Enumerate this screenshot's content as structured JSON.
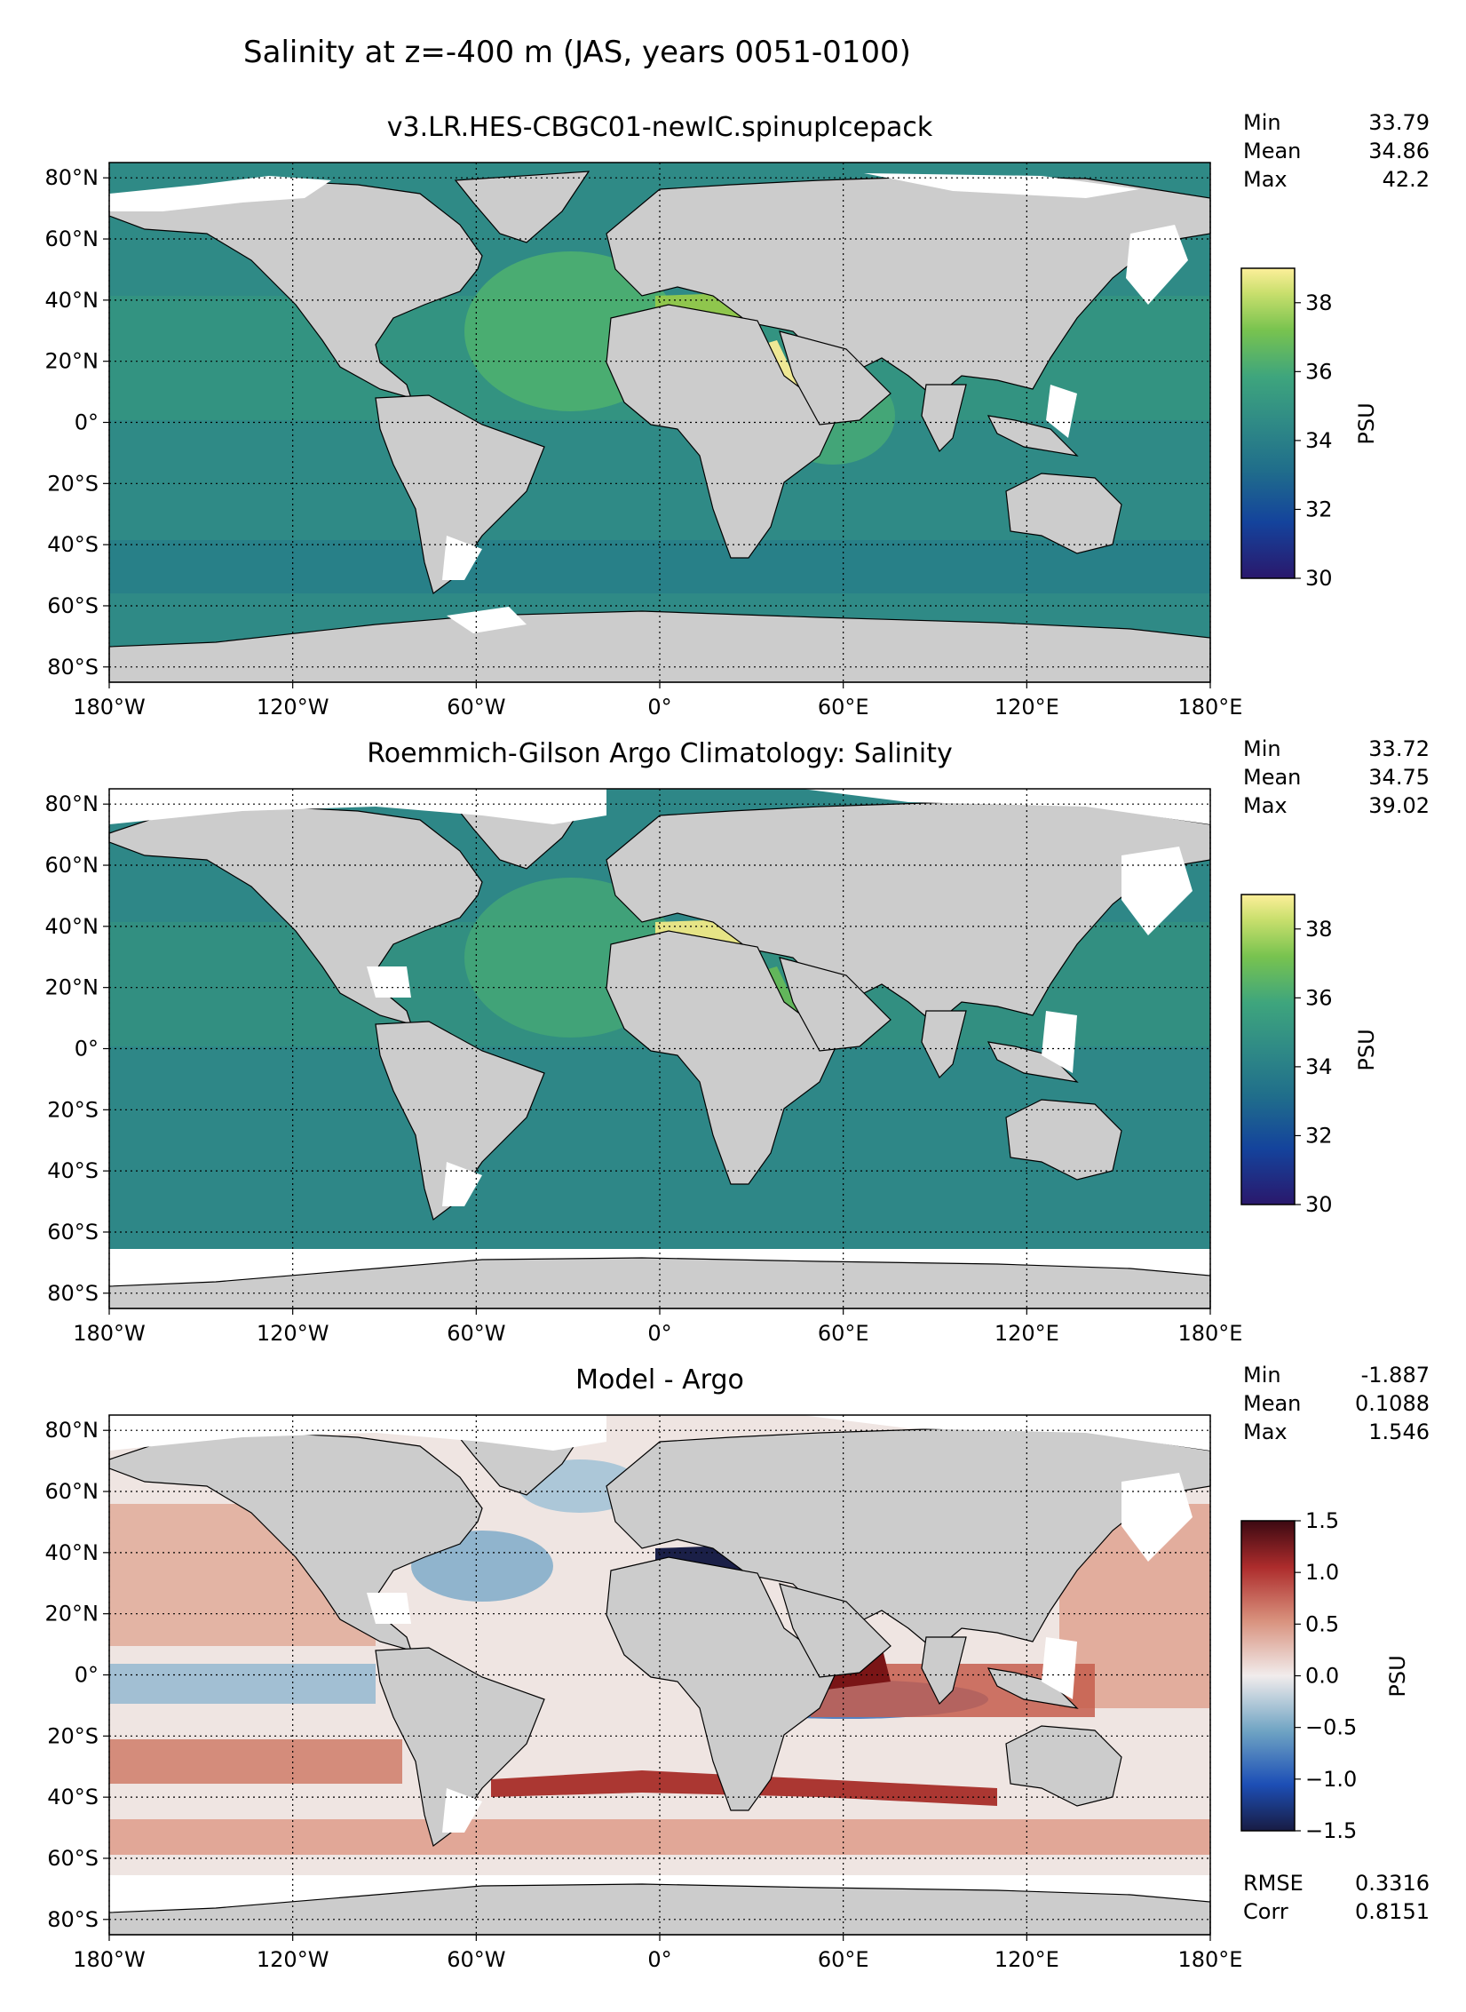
{
  "suptitle": "Salinity at z=-400 m (JAS, years 0051-0100)",
  "x_ticks": [
    "180°W",
    "120°W",
    "60°W",
    "0°",
    "60°E",
    "120°E",
    "180°E"
  ],
  "y_ticks": [
    "80°N",
    "60°N",
    "40°N",
    "20°N",
    "0°",
    "20°S",
    "40°S",
    "60°S",
    "80°S"
  ],
  "colors": {
    "land": "#cccccc",
    "missing": "#ffffff",
    "grid": "#000000"
  },
  "chart_data": [
    {
      "type": "heatmap",
      "title": "v3.LR.HES-CBGC01-newIC.spinupIcepack",
      "variable": "Salinity",
      "colormap": "haline",
      "colorbar": {
        "label": "PSU",
        "range": [
          30,
          39
        ],
        "ticks": [
          "30",
          "32",
          "34",
          "36",
          "38"
        ]
      },
      "stats": {
        "labels": [
          "Min",
          "Mean",
          "Max"
        ],
        "values": [
          "33.79",
          "34.86",
          "42.2"
        ]
      },
      "extras": null,
      "xlim": [
        -180,
        180
      ],
      "ylim": [
        -85,
        85
      ],
      "missing_south_of": null
    },
    {
      "type": "heatmap",
      "title": "Roemmich-Gilson Argo Climatology: Salinity",
      "variable": "Salinity",
      "colormap": "haline",
      "colorbar": {
        "label": "PSU",
        "range": [
          30,
          39
        ],
        "ticks": [
          "30",
          "32",
          "34",
          "36",
          "38"
        ]
      },
      "stats": {
        "labels": [
          "Min",
          "Mean",
          "Max"
        ],
        "values": [
          "33.72",
          "34.75",
          "39.02"
        ]
      },
      "extras": null,
      "xlim": [
        -180,
        180
      ],
      "ylim": [
        -85,
        85
      ],
      "missing_south_of": -66
    },
    {
      "type": "heatmap",
      "title": "Model - Argo",
      "variable": "Salinity difference",
      "colormap": "balance",
      "colorbar": {
        "label": "PSU",
        "range": [
          -1.5,
          1.5
        ],
        "ticks": [
          "−1.5",
          "−1.0",
          "−0.5",
          "0.0",
          "0.5",
          "1.0",
          "1.5"
        ]
      },
      "stats": {
        "labels": [
          "Min",
          "Mean",
          "Max"
        ],
        "values": [
          "-1.887",
          "0.1088",
          "1.546"
        ]
      },
      "extras": {
        "labels": [
          "RMSE",
          "Corr"
        ],
        "values": [
          "0.3316",
          "0.8151"
        ]
      },
      "xlim": [
        -180,
        180
      ],
      "ylim": [
        -85,
        85
      ],
      "missing_south_of": -66
    }
  ]
}
